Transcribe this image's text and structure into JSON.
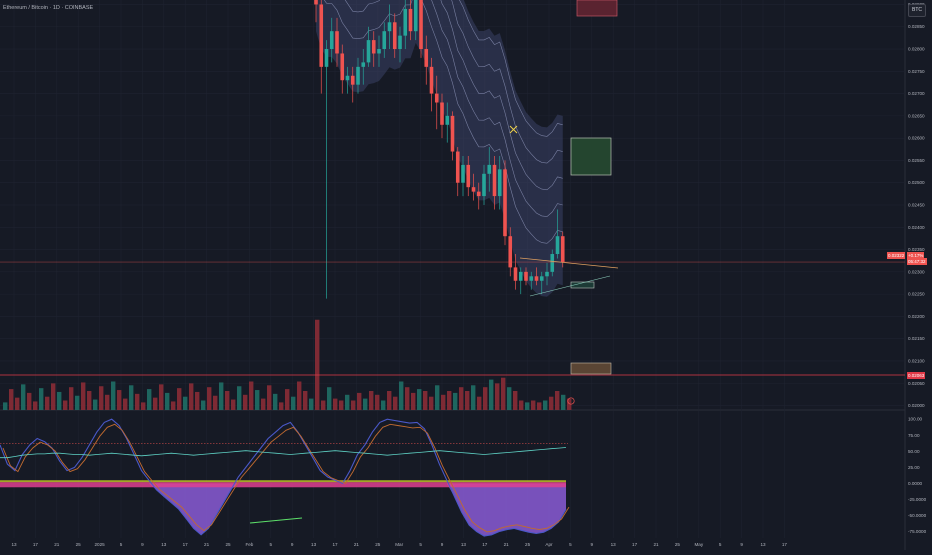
{
  "header": {
    "symbol": "Ethereum / Bitcoin · 1D · COINBASE",
    "currency_button": "BTC"
  },
  "colors": {
    "background": "#161a25",
    "up": "#26a69a",
    "down": "#ef5350",
    "band": "#8c94b8",
    "grid": "#1f2330",
    "axis_text": "#b2b5be"
  },
  "tags": {
    "last_price": "0.02322",
    "last_price_countdown": "05:47:32",
    "last_price_change": "+0.17%",
    "level_price": "0.02063"
  },
  "chart_data": [
    {
      "type": "candlestick",
      "title": "",
      "y_axis_ticks": [
        "0.02900",
        "0.02850",
        "0.02800",
        "0.02750",
        "0.02700",
        "0.02650",
        "0.02600",
        "0.02550",
        "0.02500",
        "0.02450",
        "0.02400",
        "0.02350",
        "0.02300",
        "0.02250",
        "0.02200",
        "0.02150",
        "0.02100",
        "0.02050",
        "0.02000"
      ],
      "ylim": [
        0.0199,
        0.0291
      ],
      "x_axis_ticks": [
        "13",
        "17",
        "21",
        "25",
        "2025",
        "5",
        "9",
        "13",
        "17",
        "21",
        "25",
        "Feb",
        "5",
        "9",
        "13",
        "17",
        "21",
        "25",
        "Mar",
        "5",
        "9",
        "13",
        "17",
        "21",
        "25",
        "Apr",
        "5",
        "9",
        "13",
        "17",
        "21",
        "25",
        "May",
        "5",
        "9",
        "13",
        "17"
      ],
      "candles_note": "approx. daily OHLC from 2025-01-31 to 2025-03-20",
      "ohlc": [
        [
          0.02965,
          0.0298,
          0.0286,
          0.029
        ],
        [
          0.029,
          0.0292,
          0.027,
          0.0276
        ],
        [
          0.0276,
          0.0282,
          0.0224,
          0.028
        ],
        [
          0.028,
          0.0287,
          0.0277,
          0.0284
        ],
        [
          0.0284,
          0.0287,
          0.0276,
          0.0279
        ],
        [
          0.0279,
          0.0281,
          0.027,
          0.0273
        ],
        [
          0.0273,
          0.0276,
          0.027,
          0.0274
        ],
        [
          0.0274,
          0.0276,
          0.0268,
          0.0272
        ],
        [
          0.0272,
          0.0278,
          0.027,
          0.0276
        ],
        [
          0.0276,
          0.028,
          0.0272,
          0.0277
        ],
        [
          0.0277,
          0.0285,
          0.0276,
          0.0282
        ],
        [
          0.0282,
          0.0284,
          0.0276,
          0.0279
        ],
        [
          0.0279,
          0.0283,
          0.0276,
          0.028
        ],
        [
          0.028,
          0.0286,
          0.0278,
          0.0284
        ],
        [
          0.0284,
          0.029,
          0.028,
          0.0286
        ],
        [
          0.0286,
          0.0288,
          0.0278,
          0.028
        ],
        [
          0.028,
          0.0285,
          0.0277,
          0.0283
        ],
        [
          0.0283,
          0.0292,
          0.028,
          0.0289
        ],
        [
          0.0289,
          0.0291,
          0.0282,
          0.0284
        ],
        [
          0.0284,
          0.0299,
          0.0282,
          0.0296
        ],
        [
          0.0296,
          0.0298,
          0.0278,
          0.028
        ],
        [
          0.028,
          0.0283,
          0.0272,
          0.0276
        ],
        [
          0.0276,
          0.0278,
          0.0266,
          0.027
        ],
        [
          0.027,
          0.0274,
          0.0262,
          0.0268
        ],
        [
          0.0268,
          0.027,
          0.026,
          0.0263
        ],
        [
          0.0263,
          0.0268,
          0.0259,
          0.0265
        ],
        [
          0.0265,
          0.0266,
          0.0255,
          0.0257
        ],
        [
          0.0257,
          0.0258,
          0.0247,
          0.025
        ],
        [
          0.025,
          0.0256,
          0.0247,
          0.0254
        ],
        [
          0.0254,
          0.0256,
          0.0247,
          0.0249
        ],
        [
          0.0249,
          0.0252,
          0.0246,
          0.0248
        ],
        [
          0.0248,
          0.025,
          0.0244,
          0.0247
        ],
        [
          0.0247,
          0.0254,
          0.0245,
          0.0252
        ],
        [
          0.0252,
          0.0258,
          0.0248,
          0.0254
        ],
        [
          0.0254,
          0.0256,
          0.0244,
          0.0247
        ],
        [
          0.0247,
          0.0256,
          0.0244,
          0.0253
        ],
        [
          0.0253,
          0.0255,
          0.0236,
          0.0238
        ],
        [
          0.0238,
          0.024,
          0.0229,
          0.0231
        ],
        [
          0.0231,
          0.0234,
          0.0226,
          0.0228
        ],
        [
          0.0228,
          0.0231,
          0.0225,
          0.023
        ],
        [
          0.023,
          0.0231,
          0.0227,
          0.0228
        ],
        [
          0.0228,
          0.023,
          0.0226,
          0.0229
        ],
        [
          0.0229,
          0.0231,
          0.0227,
          0.0228
        ],
        [
          0.0228,
          0.023,
          0.0225,
          0.0229
        ],
        [
          0.0229,
          0.0232,
          0.0227,
          0.023
        ],
        [
          0.023,
          0.0235,
          0.0229,
          0.0234
        ],
        [
          0.0234,
          0.0244,
          0.0233,
          0.0238
        ],
        [
          0.0238,
          0.0239,
          0.0231,
          0.02322
        ]
      ],
      "volume": [
        22,
        14,
        30,
        20,
        12,
        14,
        10,
        24,
        12,
        10,
        16,
        10,
        18,
        12,
        20,
        16,
        10,
        20,
        14,
        30,
        24,
        18,
        22,
        20,
        14,
        26,
        16,
        20,
        18,
        24,
        20,
        26,
        14,
        24,
        32,
        28,
        34,
        24,
        20,
        10,
        8,
        10,
        8,
        10,
        14,
        20,
        16,
        12
      ]
    },
    {
      "type": "line",
      "title": "",
      "y_axis_ticks": [
        "100.00",
        "75.00",
        "50.00",
        "25.00",
        "0.0000",
        "-25.0000",
        "-50.0000",
        "-75.0000"
      ],
      "ylim": [
        -85,
        105
      ],
      "series": [
        {
          "values": [
            60,
            30,
            20,
            45,
            60,
            70,
            65,
            55,
            35,
            20,
            25,
            40,
            60,
            80,
            95,
            100,
            90,
            70,
            45,
            20,
            5,
            -10,
            -20,
            -30,
            -40,
            -55,
            -70,
            -80,
            -70,
            -50,
            -30,
            -10,
            10,
            25,
            40,
            55,
            70,
            80,
            90,
            95,
            80,
            60,
            40,
            20,
            10,
            5,
            0,
            20,
            45,
            60,
            80,
            95,
            100,
            98,
            96,
            94,
            95,
            85,
            60,
            30,
            5,
            -20,
            -45,
            -65,
            -75,
            -82,
            -80,
            -75,
            -72,
            -70,
            -73,
            -76,
            -78,
            -76,
            -70,
            -60,
            -40
          ]
        },
        {
          "values": [
            40,
            40,
            42,
            44,
            45,
            46,
            46,
            47,
            47,
            46,
            45,
            45,
            44,
            45,
            46,
            47,
            46,
            45,
            44,
            43,
            44,
            45,
            46,
            47,
            46,
            45,
            44,
            45,
            46,
            47,
            48,
            49,
            50,
            51,
            50,
            49,
            48,
            47,
            46,
            45,
            46,
            47,
            48,
            49,
            50,
            51,
            50,
            49,
            48,
            47,
            46,
            45,
            44,
            45,
            46,
            47,
            48,
            49,
            50,
            51,
            50,
            49,
            48,
            47,
            46,
            45,
            46,
            47,
            48,
            49,
            50,
            51,
            52,
            53,
            54,
            55,
            56
          ]
        }
      ]
    }
  ]
}
